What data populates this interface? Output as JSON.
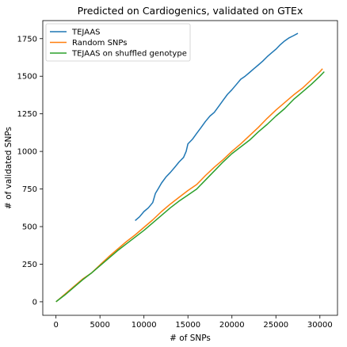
{
  "chart_data": {
    "type": "line",
    "title": "Predicted on Cardiogenics, validated on GTEx",
    "xlabel": "# of SNPs",
    "ylabel": "# of validated SNPs",
    "xlim": [
      -1500,
      32000
    ],
    "ylim": [
      -90,
      1870
    ],
    "xticks": [
      0,
      5000,
      10000,
      15000,
      20000,
      25000,
      30000
    ],
    "xtick_labels": [
      "0",
      "5000",
      "10000",
      "15000",
      "20000",
      "25000",
      "30000"
    ],
    "yticks": [
      0,
      250,
      500,
      750,
      1000,
      1250,
      1500,
      1750
    ],
    "ytick_labels": [
      "0",
      "250",
      "500",
      "750",
      "1000",
      "1250",
      "1500",
      "1750"
    ],
    "grid": false,
    "legend_position": "top-left",
    "series": [
      {
        "name": "TEJAAS",
        "color": "#1f77b4",
        "x": [
          9000,
          9500,
          10000,
          10500,
          11000,
          11300,
          11600,
          12000,
          12500,
          13000,
          13500,
          14000,
          14500,
          14800,
          15000,
          15500,
          16000,
          16500,
          17000,
          17500,
          18000,
          18500,
          19000,
          19500,
          20000,
          20500,
          21000,
          21500,
          22000,
          22500,
          23000,
          23500,
          24000,
          24500,
          25000,
          25500,
          26000,
          26500,
          27000,
          27500
        ],
        "y": [
          540,
          565,
          600,
          625,
          660,
          720,
          750,
          790,
          830,
          860,
          895,
          930,
          960,
          1000,
          1050,
          1080,
          1120,
          1160,
          1200,
          1235,
          1260,
          1300,
          1340,
          1380,
          1410,
          1445,
          1480,
          1500,
          1525,
          1550,
          1575,
          1600,
          1630,
          1655,
          1680,
          1710,
          1735,
          1755,
          1770,
          1785
        ]
      },
      {
        "name": "Random SNPs",
        "color": "#ff7f0e",
        "x": [
          0,
          1000,
          2000,
          3000,
          4000,
          5000,
          6000,
          7000,
          8000,
          9000,
          10000,
          11000,
          12000,
          13000,
          14000,
          15000,
          16000,
          17000,
          18000,
          19000,
          20000,
          21000,
          22000,
          23000,
          24000,
          25000,
          26000,
          27000,
          28000,
          29000,
          30000,
          30300
        ],
        "y": [
          0,
          50,
          100,
          150,
          190,
          245,
          300,
          350,
          400,
          445,
          495,
          545,
          600,
          650,
          695,
          740,
          780,
          840,
          895,
          945,
          1000,
          1050,
          1105,
          1160,
          1220,
          1275,
          1325,
          1375,
          1420,
          1475,
          1530,
          1550
        ]
      },
      {
        "name": "TEJAAS on shuffled genotype",
        "color": "#2ca02c",
        "x": [
          0,
          1000,
          2000,
          3000,
          4000,
          5000,
          6000,
          7000,
          8000,
          9000,
          10000,
          11000,
          12000,
          13000,
          14000,
          15000,
          16000,
          17000,
          18000,
          19000,
          20000,
          21000,
          22000,
          23000,
          24000,
          25000,
          26000,
          27000,
          28000,
          29000,
          30000,
          30500
        ],
        "y": [
          0,
          45,
          95,
          145,
          190,
          240,
          290,
          340,
          385,
          430,
          475,
          525,
          575,
          625,
          670,
          710,
          750,
          810,
          870,
          930,
          985,
          1030,
          1075,
          1130,
          1180,
          1235,
          1285,
          1345,
          1395,
          1445,
          1500,
          1530
        ]
      }
    ]
  }
}
